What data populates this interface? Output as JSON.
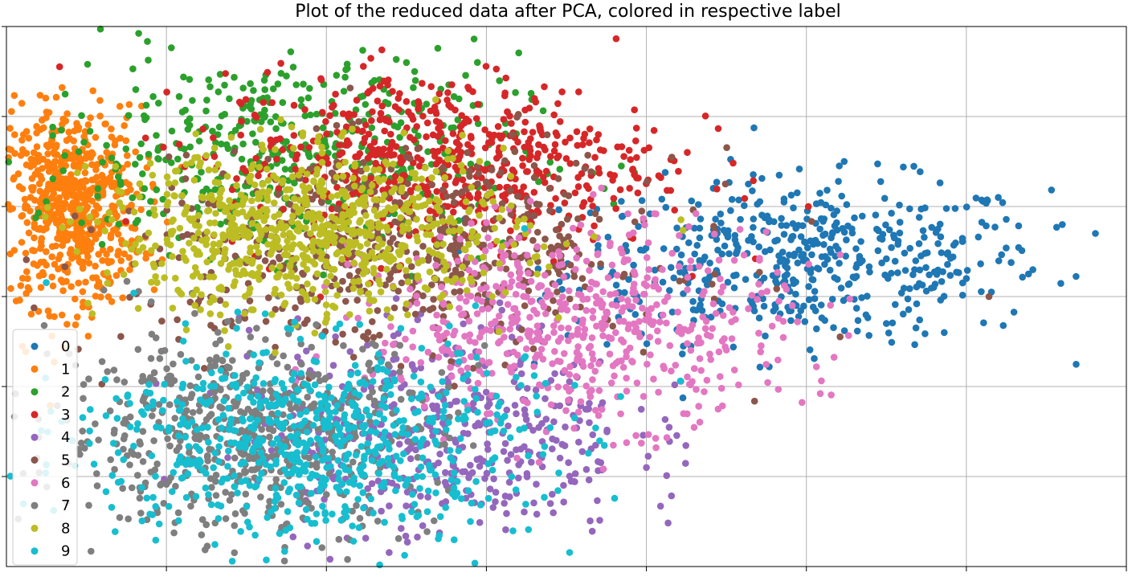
{
  "chart_data": {
    "type": "scatter",
    "title": "Plot of the reduced data after PCA, colored in respective label",
    "xlabel": "",
    "ylabel": "",
    "xlim": [
      -2,
      5
    ],
    "ylim": [
      -3,
      3
    ],
    "grid": true,
    "legend_position": "lower-left",
    "tick_labels_visible": false,
    "series": [
      {
        "name": "0",
        "color": "#1f77b4",
        "cx": 3.0,
        "cy": 0.4,
        "sx": 0.75,
        "sy": 0.45,
        "n": 520,
        "points": [
          [
            3.0,
            0.4
          ],
          [
            4.0,
            0.2
          ],
          [
            4.6,
            0.8
          ],
          [
            2.5,
            0.7
          ],
          [
            3.5,
            -0.3
          ]
        ]
      },
      {
        "name": "1",
        "color": "#ff7f0e",
        "cx": -1.6,
        "cy": 1.0,
        "sx": 0.22,
        "sy": 0.55,
        "n": 650,
        "points": [
          [
            -1.6,
            1.0
          ],
          [
            -1.8,
            1.5
          ],
          [
            -1.4,
            0.4
          ],
          [
            -1.9,
            0.9
          ]
        ]
      },
      {
        "name": "2",
        "color": "#2ca02c",
        "cx": -0.3,
        "cy": 1.6,
        "sx": 0.75,
        "sy": 0.55,
        "n": 480,
        "points": [
          [
            -0.3,
            1.6
          ],
          [
            0.3,
            2.4
          ],
          [
            -0.9,
            1.3
          ],
          [
            0.5,
            2.6
          ]
        ]
      },
      {
        "name": "3",
        "color": "#d62728",
        "cx": 0.7,
        "cy": 1.5,
        "sx": 0.7,
        "sy": 0.5,
        "n": 620,
        "points": [
          [
            0.7,
            1.5
          ],
          [
            1.3,
            2.2
          ],
          [
            0.2,
            1.4
          ],
          [
            1.7,
            1.8
          ]
        ]
      },
      {
        "name": "4",
        "color": "#9467bd",
        "cx": 0.7,
        "cy": -1.5,
        "sx": 0.6,
        "sy": 0.6,
        "n": 480,
        "points": [
          [
            0.7,
            -1.5
          ],
          [
            1.4,
            -2.3
          ],
          [
            0.1,
            -1.0
          ],
          [
            2.0,
            -1.9
          ]
        ]
      },
      {
        "name": "5",
        "color": "#8c564b",
        "cx": 0.5,
        "cy": 0.5,
        "sx": 0.85,
        "sy": 0.55,
        "n": 560,
        "points": [
          [
            0.5,
            0.5
          ],
          [
            1.3,
            0.9
          ],
          [
            -0.2,
            0.3
          ],
          [
            1.6,
            0.2
          ]
        ]
      },
      {
        "name": "6",
        "color": "#e377c2",
        "cx": 1.6,
        "cy": -0.3,
        "sx": 0.65,
        "sy": 0.55,
        "n": 580,
        "points": [
          [
            1.6,
            -0.3
          ],
          [
            2.3,
            -0.8
          ],
          [
            1.0,
            0.1
          ],
          [
            2.1,
            0.3
          ]
        ]
      },
      {
        "name": "7",
        "color": "#7f7f7f",
        "cx": -0.5,
        "cy": -1.5,
        "sx": 0.6,
        "sy": 0.55,
        "n": 620,
        "points": [
          [
            -0.5,
            -1.5
          ],
          [
            -1.1,
            -0.9
          ],
          [
            0.0,
            -2.2
          ],
          [
            -0.9,
            -1.8
          ]
        ]
      },
      {
        "name": "8",
        "color": "#bcbd22",
        "cx": -0.1,
        "cy": 0.7,
        "sx": 0.65,
        "sy": 0.45,
        "n": 780,
        "points": [
          [
            -0.1,
            0.7
          ],
          [
            0.6,
            0.4
          ],
          [
            -0.8,
            0.9
          ],
          [
            0.9,
            0.2
          ]
        ]
      },
      {
        "name": "9",
        "color": "#17becf",
        "cx": -0.1,
        "cy": -1.6,
        "sx": 0.7,
        "sy": 0.55,
        "n": 700,
        "points": [
          [
            -0.1,
            -1.6
          ],
          [
            0.6,
            -2.0
          ],
          [
            -0.9,
            -1.2
          ],
          [
            0.9,
            -2.5
          ]
        ]
      }
    ]
  }
}
